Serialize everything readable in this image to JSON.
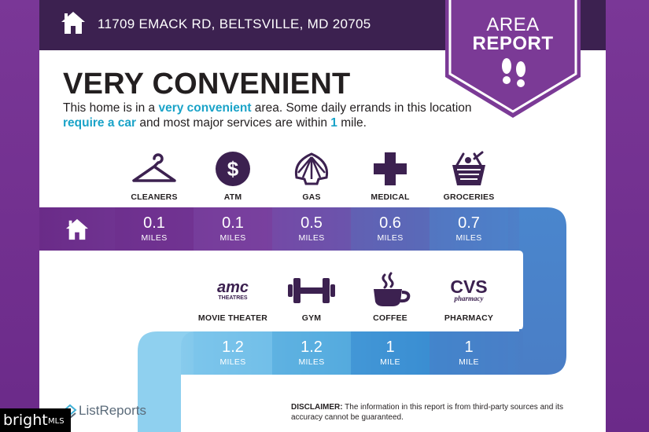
{
  "header": {
    "address": "11709 EMACK RD, BELTSVILLE, MD 20705",
    "home_icon": "home-icon"
  },
  "badge": {
    "line1": "AREA",
    "line2": "REPORT",
    "icon": "footprints-icon"
  },
  "title": "VERY CONVENIENT",
  "summary": {
    "p1": "This home is in a ",
    "h1": "very convenient",
    "p2": " area. Some daily errands in this location ",
    "h2": "require a car",
    "p3": " and most major services are within ",
    "h3": "1",
    "p4": " mile."
  },
  "row1": [
    {
      "label": "CLEANERS",
      "icon": "hanger-icon",
      "value": "0.1",
      "unit": "MILES"
    },
    {
      "label": "ATM",
      "icon": "dollar-icon",
      "value": "0.1",
      "unit": "MILES"
    },
    {
      "label": "GAS",
      "icon": "shell-icon",
      "value": "0.5",
      "unit": "MILES"
    },
    {
      "label": "MEDICAL",
      "icon": "medical-cross-icon",
      "value": "0.6",
      "unit": "MILES"
    },
    {
      "label": "GROCERIES",
      "icon": "basket-icon",
      "value": "0.7",
      "unit": "MILES"
    }
  ],
  "row2": [
    {
      "label": "MOVIE THEATER",
      "icon": "amc-logo-icon",
      "logo_text": "amc",
      "logo_sub": "THEATRES",
      "value": "1.2",
      "unit": "MILES"
    },
    {
      "label": "GYM",
      "icon": "dumbbell-icon",
      "value": "1.2",
      "unit": "MILES"
    },
    {
      "label": "COFFEE",
      "icon": "coffee-cup-icon",
      "value": "1",
      "unit": "MILE"
    },
    {
      "label": "PHARMACY",
      "icon": "cvs-logo-icon",
      "logo_text": "CVS",
      "logo_sub": "pharmacy",
      "value": "1",
      "unit": "MILE"
    }
  ],
  "footer": {
    "brand": "ListReports",
    "disclaimer_label": "DISCLAIMER:",
    "disclaimer_text": " The information in this report is from third-party sources and its accuracy cannot be guaranteed."
  },
  "watermark": {
    "brand": "bright",
    "suffix": "MLS"
  },
  "colors": {
    "header": "#3c2150",
    "badge": "#7b3a96",
    "row1_gradient": [
      "#6a2b88",
      "#7a43a2",
      "#5a6ab8",
      "#4a86cd"
    ],
    "row2_gradient": [
      "#8fd0ef",
      "#58aee0",
      "#3a8ed2",
      "#4a7ec6"
    ],
    "highlight": "#1aa3c8"
  }
}
